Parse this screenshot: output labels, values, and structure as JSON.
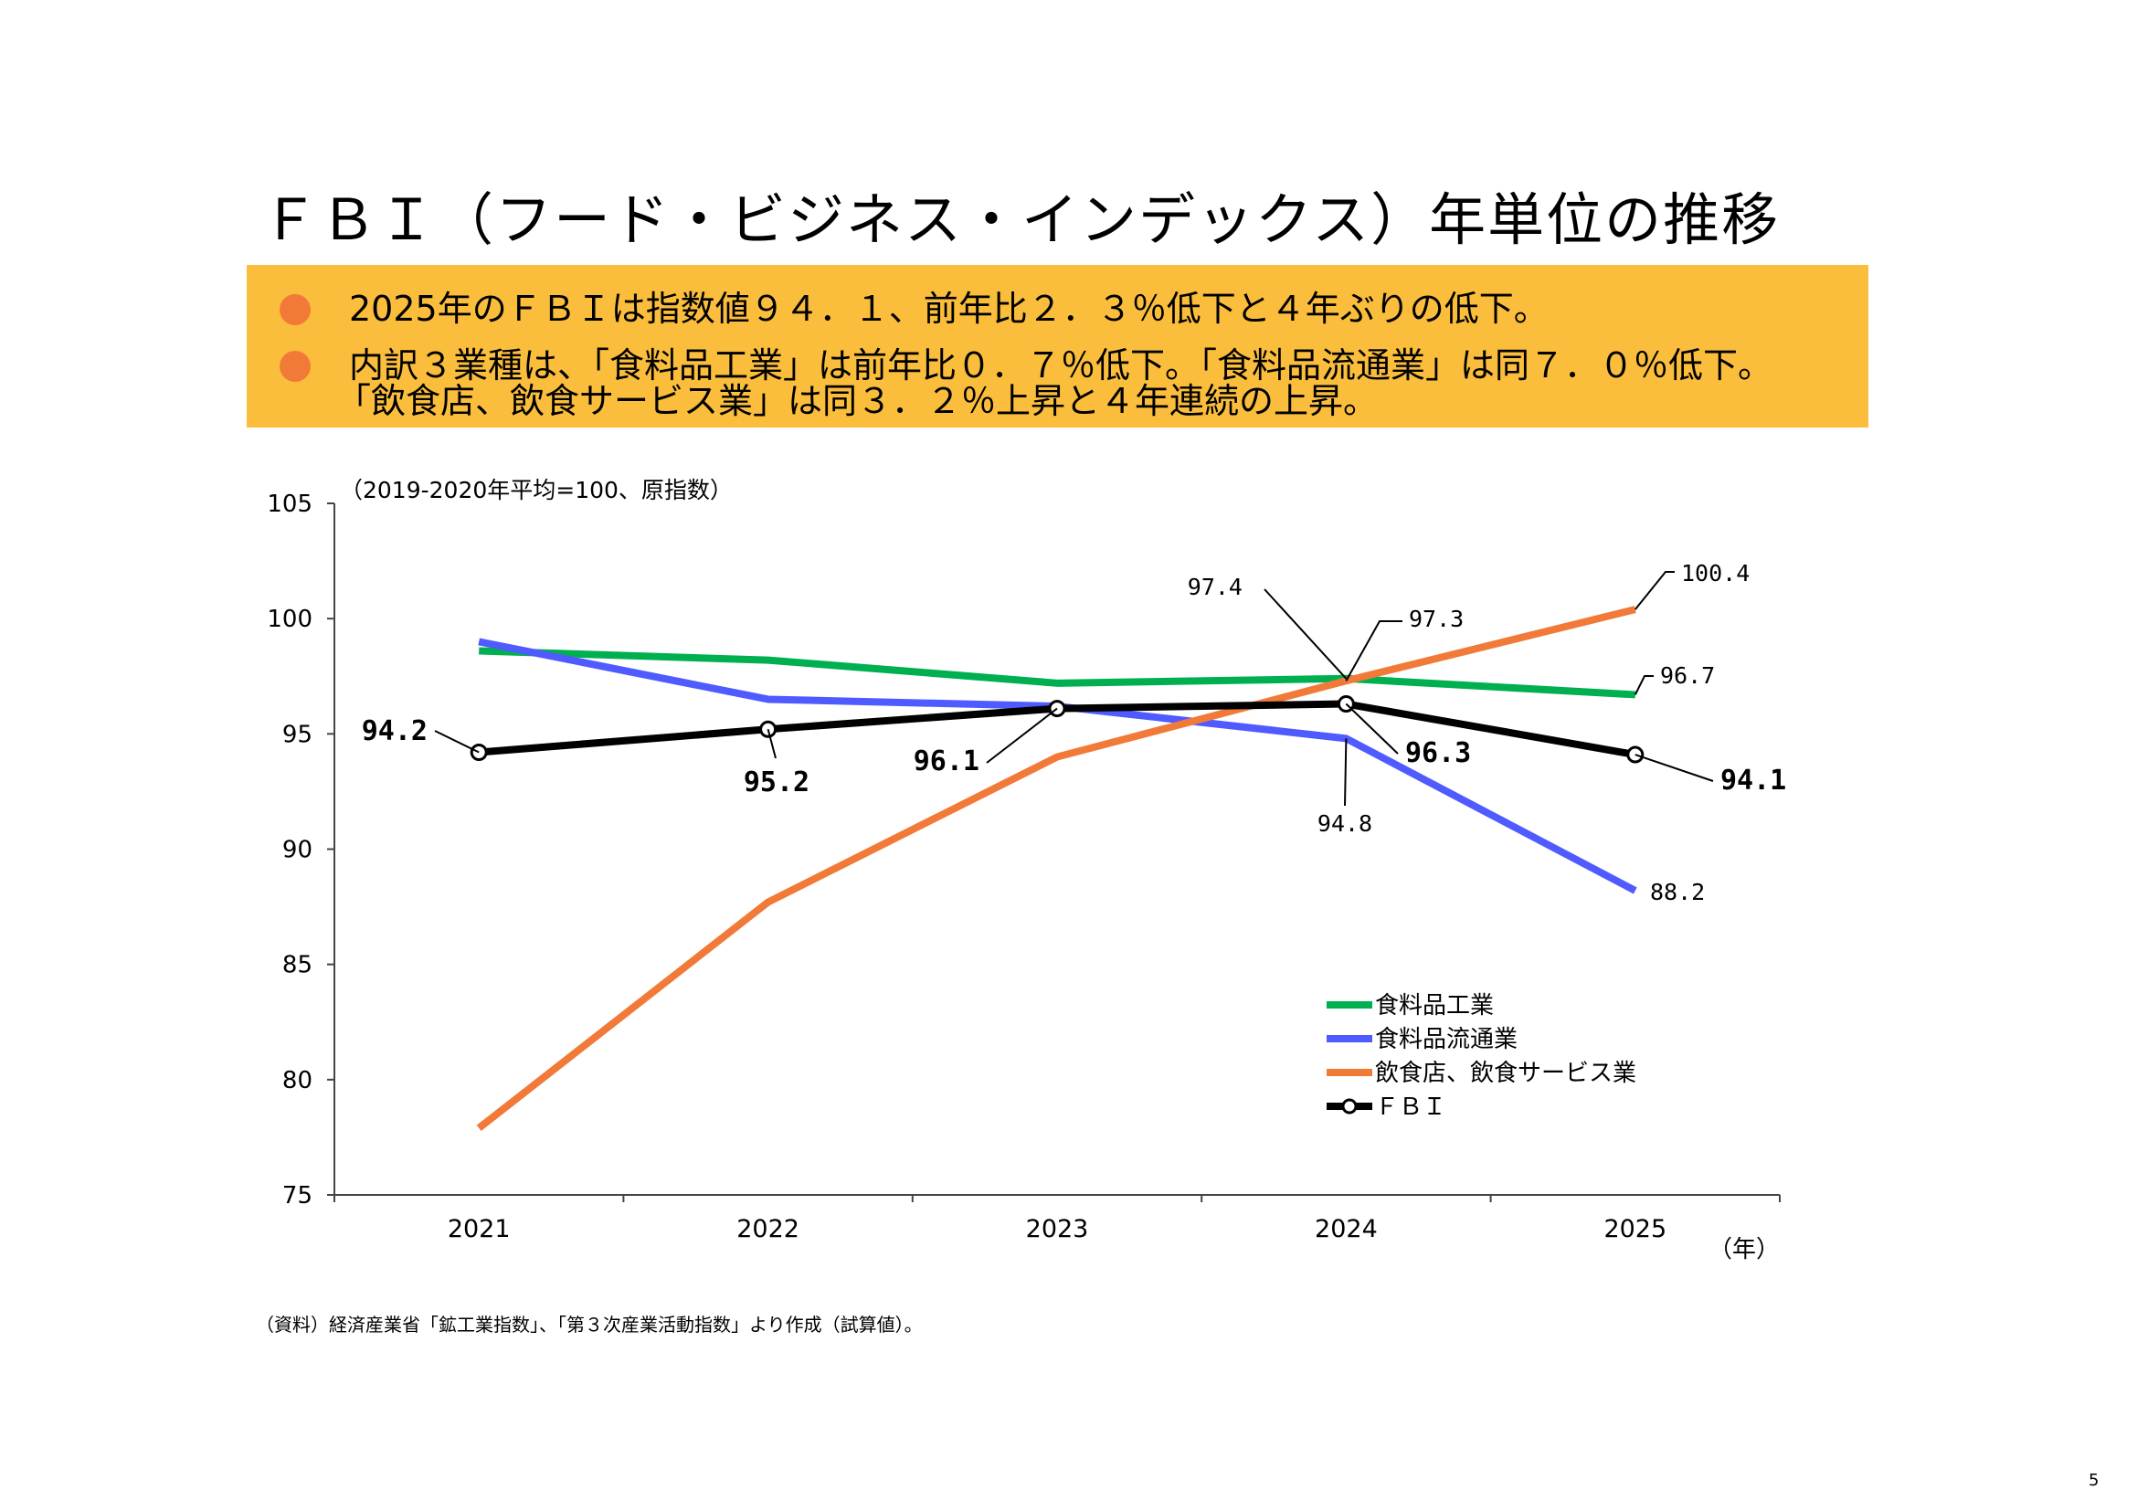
{
  "title": "ＦＢＩ（フード・ビジネス・インデックス）年単位の推移",
  "summary": {
    "bullets": [
      {
        "lines": [
          "2025年のＦＢＩは指数値９４．１、前年比２．３％低下と４年ぶりの低下。"
        ]
      },
      {
        "lines": [
          "内訳３業種は、「食料品工業」は前年比０．７％低下。「食料品流通業」は同７．０％低下。",
          "「飲食店、飲食サービス業」は同３．２％上昇と４年連続の上昇。"
        ]
      }
    ]
  },
  "chart_data": {
    "type": "line",
    "y_note": "（2019-2020年平均=100、原指数）",
    "x_unit": "（年）",
    "categories": [
      "2021",
      "2022",
      "2023",
      "2024",
      "2025"
    ],
    "ylim": [
      75,
      105
    ],
    "yticks": [
      75,
      80,
      85,
      90,
      95,
      100,
      105
    ],
    "legend_position": "lower-right",
    "series": [
      {
        "name": "食料品工業",
        "color": "#00B050",
        "values": [
          98.6,
          98.2,
          97.2,
          97.4,
          96.7
        ]
      },
      {
        "name": "食料品流通業",
        "color": "#4F5BFF",
        "values": [
          99.0,
          96.5,
          96.2,
          94.8,
          88.2
        ]
      },
      {
        "name": "飲食店、飲食サービス業",
        "color": "#F27A38",
        "values": [
          77.9,
          87.7,
          94.0,
          97.3,
          100.4
        ]
      },
      {
        "name": "ＦＢＩ",
        "color": "#000000",
        "values": [
          94.2,
          95.2,
          96.1,
          96.3,
          94.1
        ],
        "markers": true
      }
    ],
    "annotations": [
      {
        "text": "94.2",
        "bold": true
      },
      {
        "text": "95.2",
        "bold": true
      },
      {
        "text": "96.1",
        "bold": true
      },
      {
        "text": "96.3",
        "bold": true
      },
      {
        "text": "94.1",
        "bold": true
      },
      {
        "text": "97.4",
        "bold": false
      },
      {
        "text": "97.3",
        "bold": false
      },
      {
        "text": "94.8",
        "bold": false
      },
      {
        "text": "100.4",
        "bold": false
      },
      {
        "text": "96.7",
        "bold": false
      },
      {
        "text": "88.2",
        "bold": false
      }
    ]
  },
  "source_note": "（資料）経済産業省「鉱工業指数」、「第３次産業活動指数」より作成（試算値）。",
  "page_number": "5"
}
